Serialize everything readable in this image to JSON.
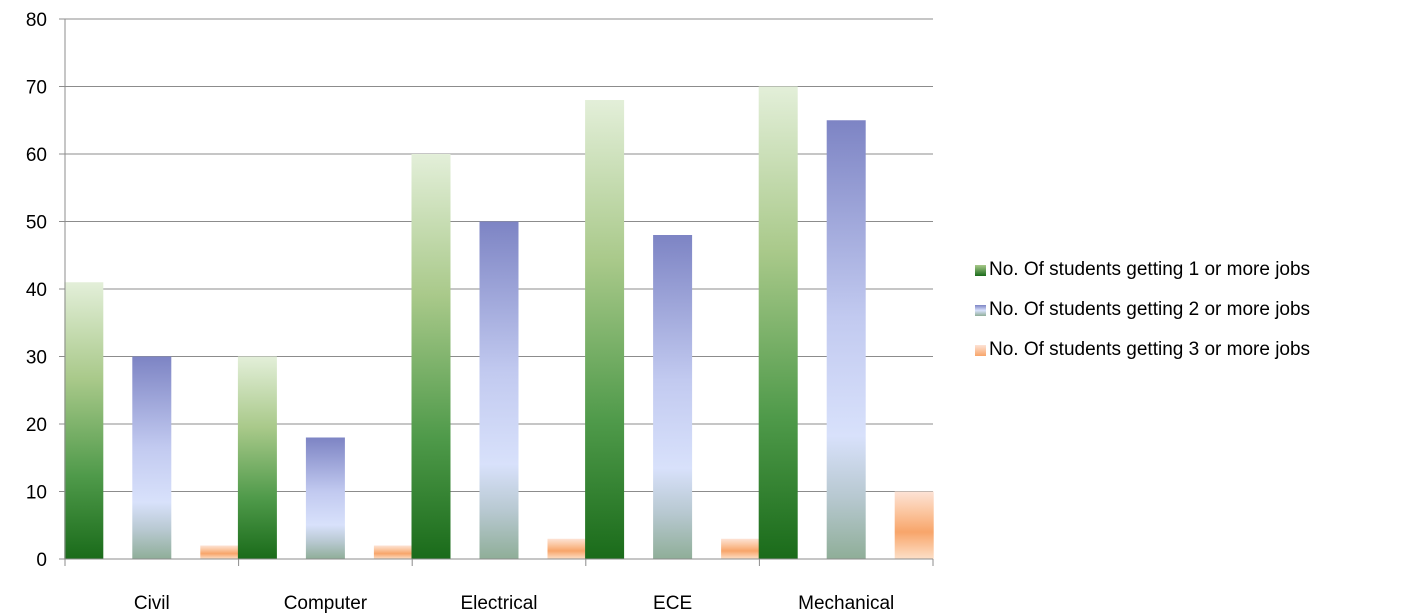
{
  "chart_data": {
    "type": "bar",
    "categories": [
      "Civil",
      "Computer",
      "Electrical",
      "ECE",
      "Mechanical"
    ],
    "series": [
      {
        "name": "No. Of students getting 1 or more jobs",
        "values": [
          41,
          30,
          60,
          68,
          70
        ],
        "color": "#1e6b1e"
      },
      {
        "name": "No. Of students getting 2 or more jobs",
        "values": [
          30,
          18,
          50,
          48,
          65
        ],
        "color": "#7f86c6"
      },
      {
        "name": "No. Of students getting 3 or more jobs",
        "values": [
          2,
          2,
          3,
          3,
          10
        ],
        "color": "#f7a46a"
      }
    ],
    "y_ticks": [
      "0",
      "10",
      "20",
      "30",
      "40",
      "50",
      "60",
      "70",
      "80"
    ],
    "ylim": [
      0,
      80
    ],
    "grid": true,
    "legend_position": "right"
  }
}
